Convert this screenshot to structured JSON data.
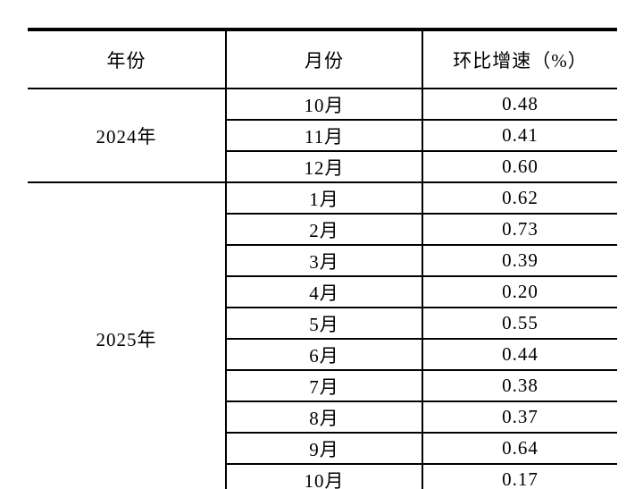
{
  "table": {
    "columns": [
      "年份",
      "月份",
      "环比增速（%）"
    ],
    "groups": [
      {
        "year": "2024年",
        "rows": [
          {
            "month": "10月",
            "value": "0.48"
          },
          {
            "month": "11月",
            "value": "0.41"
          },
          {
            "month": "12月",
            "value": "0.60"
          }
        ]
      },
      {
        "year": "2025年",
        "rows": [
          {
            "month": "1月",
            "value": "0.62"
          },
          {
            "month": "2月",
            "value": "0.73"
          },
          {
            "month": "3月",
            "value": "0.39"
          },
          {
            "month": "4月",
            "value": "0.20"
          },
          {
            "month": "5月",
            "value": "0.55"
          },
          {
            "month": "6月",
            "value": "0.44"
          },
          {
            "month": "7月",
            "value": "0.38"
          },
          {
            "month": "8月",
            "value": "0.37"
          },
          {
            "month": "9月",
            "value": "0.64"
          },
          {
            "month": "10月",
            "value": "0.17"
          }
        ]
      }
    ],
    "colors": {
      "border": "#000000",
      "text": "#000000",
      "background": "#ffffff"
    }
  }
}
